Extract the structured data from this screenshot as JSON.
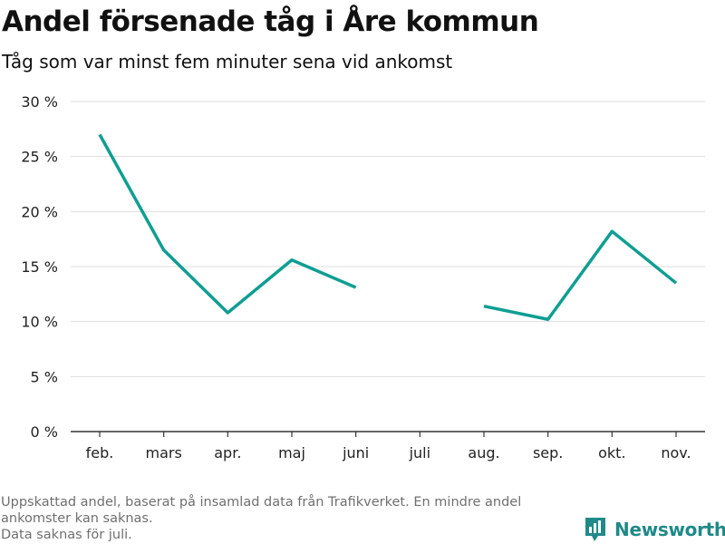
{
  "chart_data": {
    "type": "line",
    "title": "Andel försenade tåg i Åre kommun",
    "subtitle": "Tåg som var minst fem minuter sena vid ankomst",
    "categories": [
      "feb.",
      "mars",
      "apr.",
      "maj",
      "juni",
      "juli",
      "aug.",
      "sep.",
      "okt.",
      "nov."
    ],
    "series": [
      {
        "values": [
          27.0,
          16.5,
          10.8,
          15.6,
          13.1,
          null,
          11.4,
          10.2,
          18.2,
          13.5
        ]
      }
    ],
    "y_ticks": [
      0,
      5,
      10,
      15,
      20,
      25,
      30
    ],
    "y_tick_labels": [
      "0 %",
      "5 %",
      "10 %",
      "15 %",
      "20 %",
      "25 %",
      "30 %"
    ],
    "ylim": [
      0,
      30
    ],
    "grid": true,
    "line_color": "#0f9e92"
  },
  "footer": {
    "note_lines": [
      "Uppskattad andel, baserat på insamlad data från Trafikverket. En mindre andel ankomster kan saknas.",
      "Data saknas för juli."
    ],
    "brand": "Newsworthy"
  }
}
